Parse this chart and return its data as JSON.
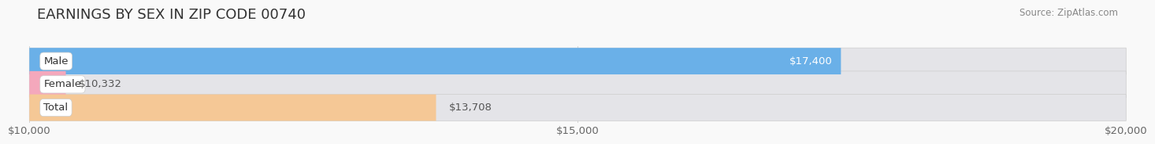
{
  "title": "EARNINGS BY SEX IN ZIP CODE 00740",
  "source": "Source: ZipAtlas.com",
  "categories": [
    "Male",
    "Female",
    "Total"
  ],
  "values": [
    17400,
    10332,
    13708
  ],
  "bar_colors": [
    "#6ab0e8",
    "#f4a8bc",
    "#f5c896"
  ],
  "value_labels": [
    "$17,400",
    "$10,332",
    "$13,708"
  ],
  "label_inside": [
    true,
    false,
    false
  ],
  "bar_bg_color": "#e4e4e8",
  "xlim": [
    10000,
    20000
  ],
  "xticks": [
    10000,
    15000,
    20000
  ],
  "xtick_labels": [
    "$10,000",
    "$15,000",
    "$20,000"
  ],
  "background_color": "#f9f9f9",
  "bar_height": 0.62,
  "title_fontsize": 13,
  "tick_fontsize": 9.5,
  "label_fontsize": 9.5,
  "value_fontsize": 9.5
}
